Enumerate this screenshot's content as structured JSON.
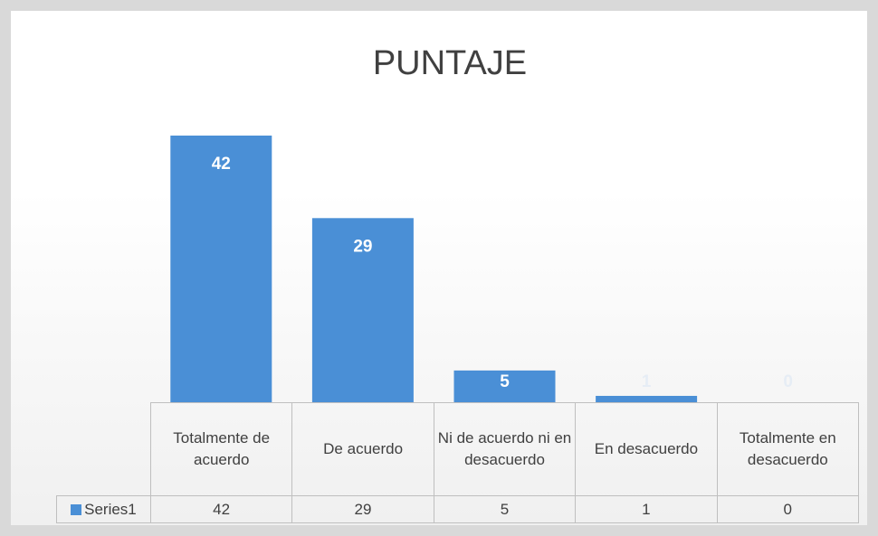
{
  "chart_data": {
    "type": "bar",
    "title": "PUNTAJE",
    "categories": [
      "Totalmente de acuerdo",
      "De acuerdo",
      "Ni de acuerdo ni en desacuerdo",
      "En desacuerdo",
      "Totalmente en desacuerdo"
    ],
    "series": [
      {
        "name": "Series1",
        "color": "#4a8fd6",
        "values": [
          42,
          29,
          5,
          1,
          0
        ]
      }
    ],
    "data_table": true
  }
}
